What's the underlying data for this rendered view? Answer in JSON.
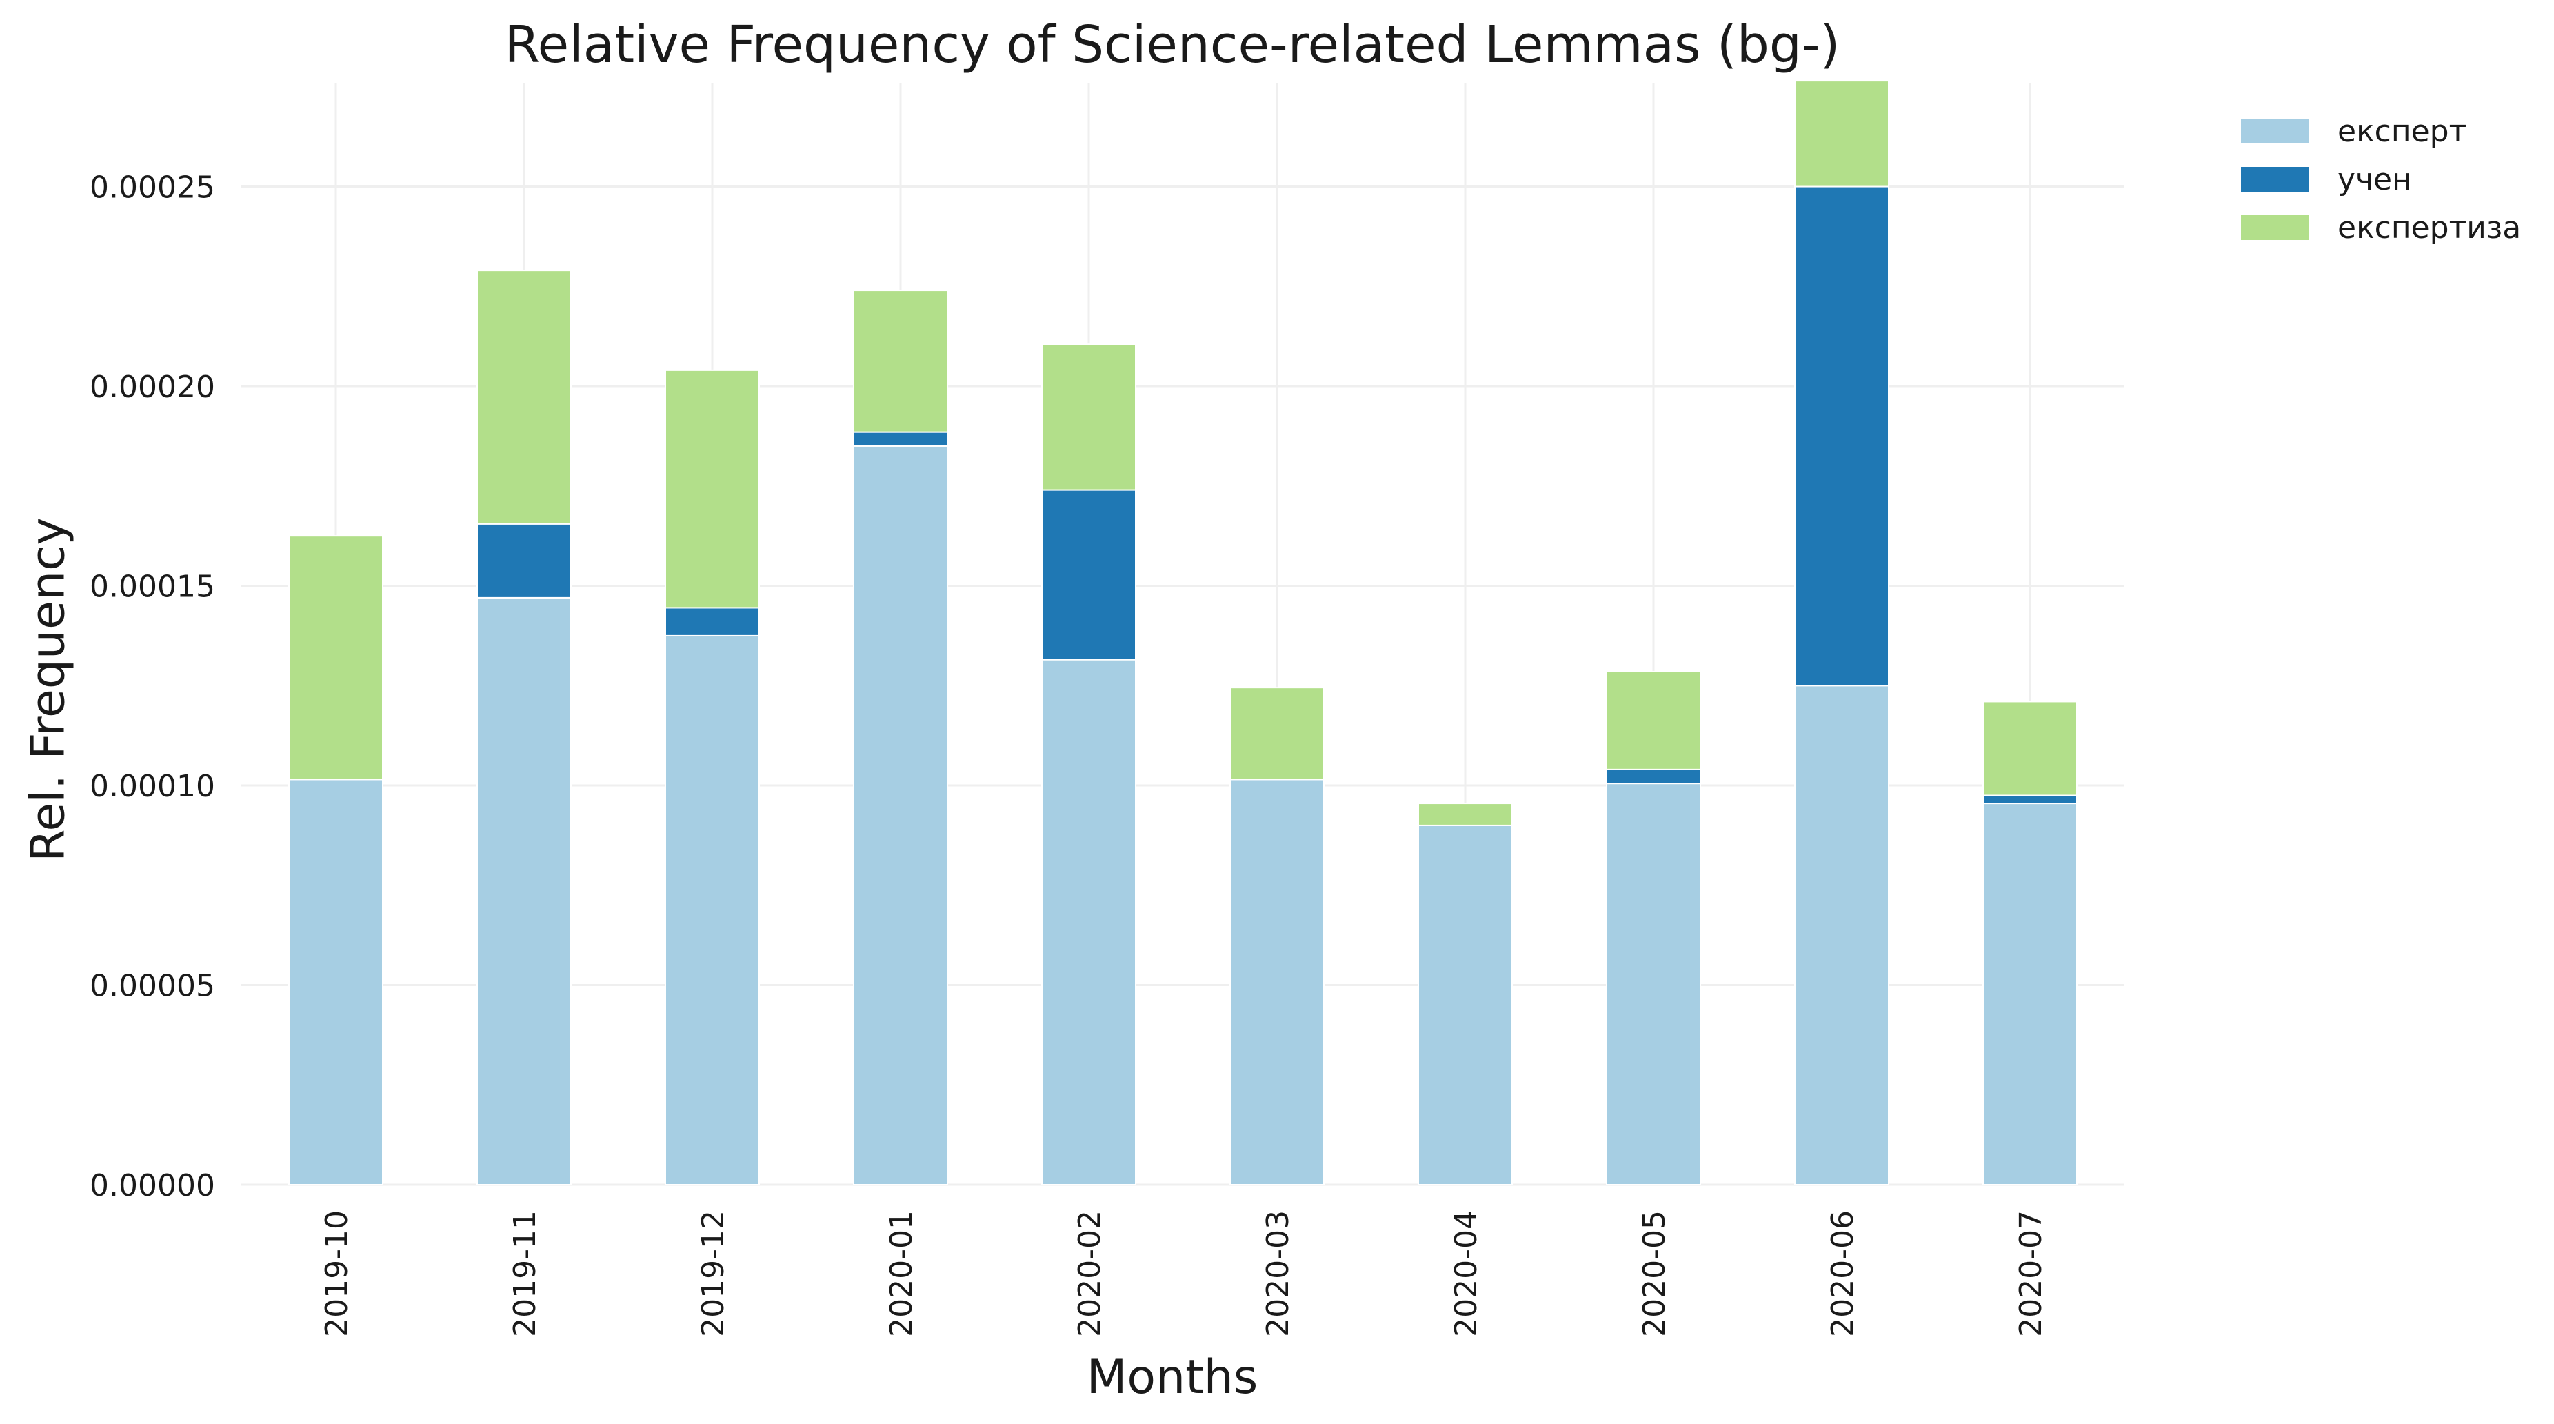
{
  "chart_data": {
    "type": "bar",
    "stacked": true,
    "title": "Relative Frequency of Science-related Lemmas (bg-)",
    "xlabel": "Months",
    "ylabel": "Rel. Frequency",
    "categories": [
      "2019-10",
      "2019-11",
      "2019-12",
      "2020-01",
      "2020-02",
      "2020-03",
      "2020-04",
      "2020-05",
      "2020-06",
      "2020-07"
    ],
    "ylim": [
      0,
      0.000276
    ],
    "yticks": [
      0,
      5e-05,
      0.0001,
      0.00015,
      0.0002,
      0.00025
    ],
    "ytick_labels": [
      "0.00000",
      "0.00005",
      "0.00010",
      "0.00015",
      "0.00020",
      "0.00025"
    ],
    "grid": true,
    "legend_position": "top-right, outside plot",
    "series": [
      {
        "name": "експерт",
        "color": "#a6cee3",
        "values": [
          0.0001015,
          0.000147,
          0.0001375,
          0.000185,
          0.0001315,
          0.0001015,
          9e-05,
          0.0001005,
          0.000125,
          9.55e-05
        ]
      },
      {
        "name": "учен",
        "color": "#1f78b4",
        "values": [
          0,
          1.85e-05,
          7e-06,
          3.5e-06,
          4.25e-05,
          0,
          0,
          3.5e-06,
          0.000125,
          2e-06
        ]
      },
      {
        "name": "експертиза",
        "color": "#b2df8a",
        "values": [
          6.1e-05,
          6.35e-05,
          5.95e-05,
          3.55e-05,
          3.65e-05,
          2.3e-05,
          5.5e-06,
          2.45e-05,
          2.65e-05,
          2.35e-05
        ]
      }
    ]
  }
}
